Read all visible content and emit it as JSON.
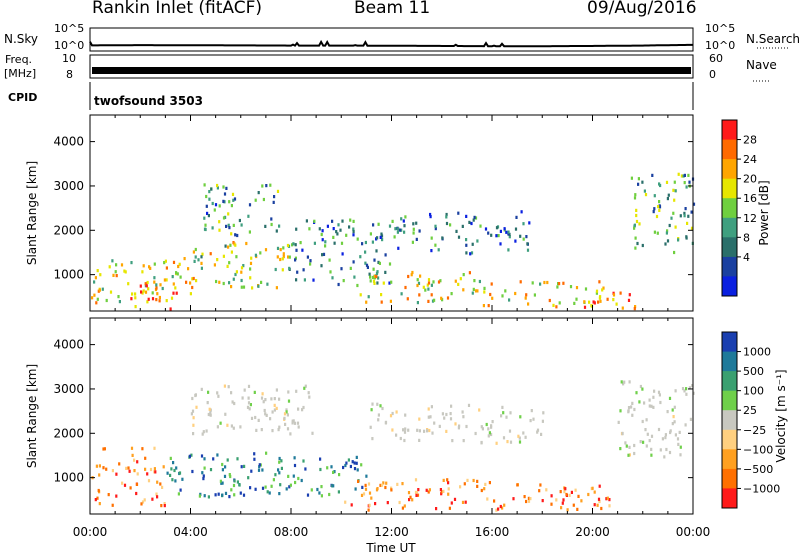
{
  "header": {
    "station": "Rankin Inlet (fitACF)",
    "beam": "Beam 11",
    "date": "09/Aug/2016"
  },
  "chart_data": [
    {
      "type": "line",
      "panel": "noise",
      "left_label": "N.Sky",
      "right_label": "N.Search",
      "left_ticks": [
        "10^5",
        "10^0"
      ],
      "right_ticks": [
        "10^5",
        "10^0"
      ],
      "y_scale": "log",
      "ylim": [
        1,
        100000
      ],
      "x_hours": [
        0,
        2,
        4,
        6,
        8,
        10,
        12,
        14,
        16,
        18,
        20,
        22,
        24
      ],
      "sky_level": [
        10,
        12,
        11,
        10,
        9,
        9,
        8,
        7,
        6,
        6,
        7,
        9,
        14
      ]
    },
    {
      "type": "line",
      "panel": "freq",
      "left_label": "Freq.",
      "left_unit": "[MHz]",
      "right_label": "Nave",
      "left_ticks": [
        "10",
        "8"
      ],
      "right_ticks": [
        "60",
        "0"
      ],
      "ylim": [
        8,
        10
      ],
      "freq_level": 9.3
    },
    {
      "type": "table",
      "panel": "cpid",
      "label": "CPID",
      "program": "twofsound 3503"
    },
    {
      "type": "heatmap",
      "panel": "power",
      "ylabel": "Slant Range [km]",
      "y_ticks": [
        1000,
        2000,
        3000,
        4000
      ],
      "ylim": [
        180,
        4600
      ],
      "xlim_hours": [
        0,
        24
      ],
      "colorbar_label": "Power [dB]",
      "colorbar_ticks": [
        "28",
        "24",
        "20",
        "16",
        "12",
        "8",
        "4"
      ],
      "colorbar_colors": [
        "#ff1a1a",
        "#ff6a00",
        "#ffa500",
        "#e6e600",
        "#6fcf3f",
        "#3f9f7f",
        "#2a6f6a",
        "#1a40a0",
        "#0a20e0"
      ],
      "echo_regions": [
        {
          "t0": 0.0,
          "t1": 4.0,
          "r0": 400,
          "r1": 1400,
          "level": 0.6
        },
        {
          "t0": 1.5,
          "t1": 3.5,
          "r0": 250,
          "r1": 800,
          "level": 0.85
        },
        {
          "t0": 4.0,
          "t1": 8.0,
          "r0": 700,
          "r1": 1800,
          "level": 0.55
        },
        {
          "t0": 4.5,
          "t1": 7.5,
          "r0": 1900,
          "r1": 3100,
          "level": 0.35
        },
        {
          "t0": 8.0,
          "t1": 12.0,
          "r0": 800,
          "r1": 2300,
          "level": 0.3
        },
        {
          "t0": 10.5,
          "t1": 15.5,
          "r0": 400,
          "r1": 1100,
          "level": 0.6
        },
        {
          "t0": 12.0,
          "t1": 17.5,
          "r0": 1500,
          "r1": 2500,
          "level": 0.25
        },
        {
          "t0": 15.5,
          "t1": 20.5,
          "r0": 300,
          "r1": 900,
          "level": 0.65
        },
        {
          "t0": 19.5,
          "t1": 21.8,
          "r0": 250,
          "r1": 700,
          "level": 0.9
        },
        {
          "t0": 21.5,
          "t1": 24.0,
          "r0": 1500,
          "r1": 3300,
          "level": 0.4
        }
      ]
    },
    {
      "type": "heatmap",
      "panel": "velocity",
      "ylabel": "Slant Range [km]",
      "y_ticks": [
        1000,
        2000,
        3000,
        4000
      ],
      "ylim": [
        180,
        4600
      ],
      "xlim_hours": [
        0,
        24
      ],
      "xlabel": "Time UT",
      "x_tick_labels": [
        "00:00",
        "04:00",
        "08:00",
        "12:00",
        "16:00",
        "20:00",
        "00:00"
      ],
      "colorbar_label": "Velocity [m s⁻¹]",
      "colorbar_ticks": [
        "1000",
        "500",
        "100",
        "25",
        "−25",
        "−100",
        "−500",
        "−1000"
      ],
      "colorbar_colors": [
        "#1a3fb0",
        "#1f7a9a",
        "#3aa070",
        "#6fd04a",
        "#c8c8c0",
        "#ffd080",
        "#ffa020",
        "#ff7000",
        "#ff1a1a"
      ],
      "echo_regions": [
        {
          "t0": 0.0,
          "t1": 3.0,
          "r0": 400,
          "r1": 1700,
          "v": "negative"
        },
        {
          "t0": 3.0,
          "t1": 7.0,
          "r0": 600,
          "r1": 1600,
          "v": "positive"
        },
        {
          "t0": 4.0,
          "t1": 9.0,
          "r0": 2000,
          "r1": 3100,
          "v": "near-zero"
        },
        {
          "t0": 7.0,
          "t1": 11.0,
          "r0": 600,
          "r1": 1500,
          "v": "positive"
        },
        {
          "t0": 10.0,
          "t1": 16.0,
          "r0": 300,
          "r1": 1000,
          "v": "negative"
        },
        {
          "t0": 11.0,
          "t1": 18.0,
          "r0": 1800,
          "r1": 2700,
          "v": "near-zero"
        },
        {
          "t0": 16.0,
          "t1": 21.0,
          "r0": 300,
          "r1": 900,
          "v": "negative"
        },
        {
          "t0": 21.0,
          "t1": 24.0,
          "r0": 1500,
          "r1": 3200,
          "v": "near-zero"
        }
      ]
    }
  ]
}
